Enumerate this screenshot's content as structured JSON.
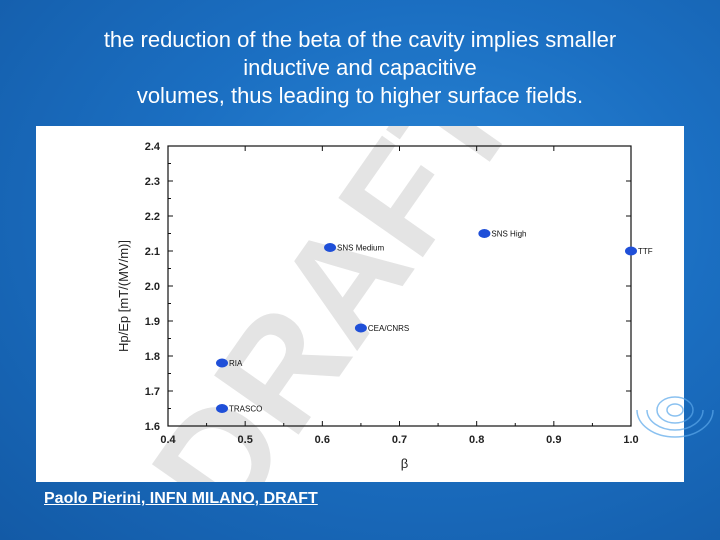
{
  "title": {
    "lines": [
      "the reduction of the beta of the cavity implies smaller",
      "inductive and capacitive",
      "volumes, thus leading to higher surface fields."
    ]
  },
  "footer": "Paolo Pierini, INFN MILANO, DRAFT",
  "watermark": "DRAFT",
  "chart_data": {
    "type": "scatter",
    "title": "",
    "xlabel": "β",
    "ylabel": "Hp/Ep [mT/(MV/m)]",
    "xlim": [
      0.4,
      1.0
    ],
    "ylim": [
      1.6,
      2.4
    ],
    "xticks": [
      "0.4",
      "0.5",
      "0.6",
      "0.7",
      "0.8",
      "0.9",
      "1.0"
    ],
    "yticks": [
      "1.6",
      "1.7",
      "1.8",
      "1.9",
      "2.0",
      "2.1",
      "2.2",
      "2.3",
      "2.4"
    ],
    "grid": false,
    "marker_color": "#1f4fd8",
    "points": [
      {
        "label": "SNS Medium",
        "x": 0.61,
        "y": 2.11
      },
      {
        "label": "SNS High",
        "x": 0.81,
        "y": 2.15
      },
      {
        "label": "TTF",
        "x": 1.0,
        "y": 2.1
      },
      {
        "label": "CEA/CNRS",
        "x": 0.65,
        "y": 1.88
      },
      {
        "label": "RIA",
        "x": 0.47,
        "y": 1.78
      },
      {
        "label": "TRASCO",
        "x": 0.47,
        "y": 1.65
      }
    ]
  }
}
